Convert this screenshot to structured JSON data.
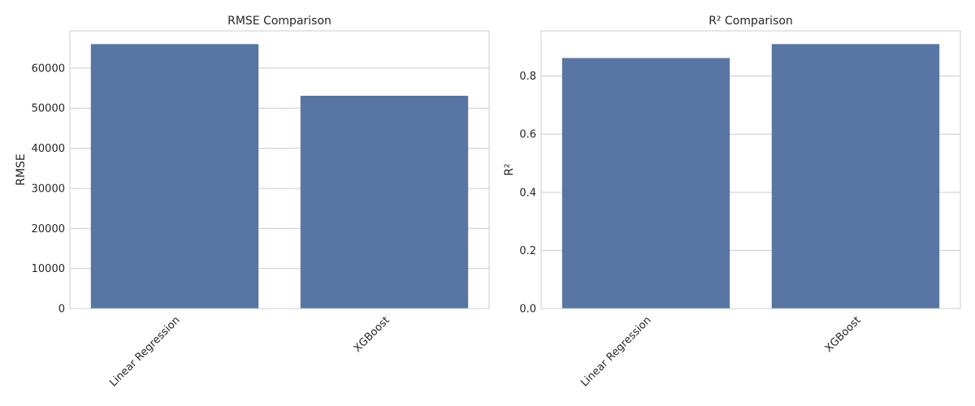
{
  "chart_data": [
    {
      "type": "bar",
      "title": "RMSE Comparison",
      "xlabel": "",
      "ylabel": "RMSE",
      "categories": [
        "Linear Regression",
        "XGBoost"
      ],
      "values": [
        66000,
        53100
      ],
      "ylim": [
        0,
        69300
      ],
      "yticks": [
        0,
        10000,
        20000,
        30000,
        40000,
        50000,
        60000
      ],
      "ytick_labels": [
        "0",
        "10000",
        "20000",
        "30000",
        "40000",
        "50000",
        "60000"
      ],
      "grid": true,
      "bar_color": "#5975a4"
    },
    {
      "type": "bar",
      "title": "R² Comparison",
      "xlabel": "",
      "ylabel": "R²",
      "categories": [
        "Linear Regression",
        "XGBoost"
      ],
      "values": [
        0.862,
        0.91
      ],
      "ylim": [
        0,
        0.9555
      ],
      "yticks": [
        0.0,
        0.2,
        0.4,
        0.6,
        0.8
      ],
      "ytick_labels": [
        "0.0",
        "0.2",
        "0.4",
        "0.6",
        "0.8"
      ],
      "grid": true,
      "bar_color": "#5975a4"
    }
  ]
}
